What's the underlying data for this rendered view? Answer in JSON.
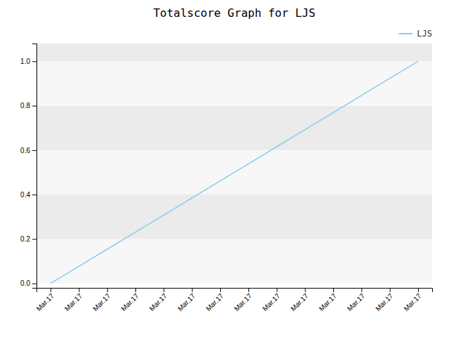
{
  "chart_data": {
    "type": "line",
    "title": "Totalscore Graph for LJS",
    "categories": [
      "Mar.17",
      "Mar.17",
      "Mar.17",
      "Mar.17",
      "Mar.17",
      "Mar.17",
      "Mar.17",
      "Mar.17",
      "Mar.17",
      "Mar.17",
      "Mar.17",
      "Mar.17",
      "Mar.17",
      "Mar.17"
    ],
    "series": [
      {
        "name": "LJS",
        "color": "#87ceeb",
        "values": [
          0.0,
          0.0769,
          0.1538,
          0.2308,
          0.3077,
          0.3846,
          0.4615,
          0.5385,
          0.6154,
          0.6923,
          0.7692,
          0.8462,
          0.9231,
          1.0
        ]
      }
    ],
    "ylim": [
      -0.02,
      1.08
    ],
    "yticks": [
      {
        "value": 0.0,
        "label": "0.0"
      },
      0.2,
      0.4,
      0.6,
      0.8,
      {
        "value": 1.0,
        "label": "1.0"
      }
    ],
    "grid": true,
    "legend": "upper right"
  }
}
